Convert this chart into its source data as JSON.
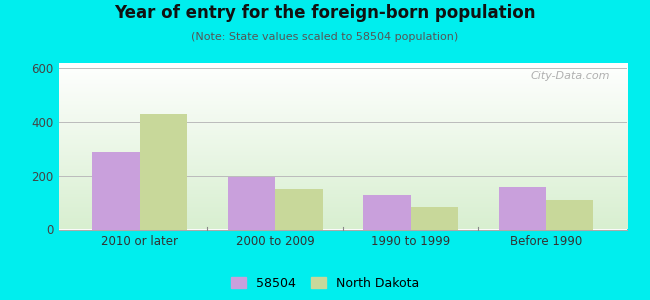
{
  "title": "Year of entry for the foreign-born population",
  "subtitle": "(Note: State values scaled to 58504 population)",
  "categories": [
    "2010 or later",
    "2000 to 2009",
    "1990 to 1999",
    "Before 1990"
  ],
  "values_58504": [
    290,
    197,
    127,
    158
  ],
  "values_nd": [
    430,
    152,
    83,
    108
  ],
  "color_58504": "#c9a0dc",
  "color_nd": "#c8d89a",
  "ylim": [
    0,
    620
  ],
  "yticks": [
    0,
    200,
    400,
    600
  ],
  "background_color": "#00eeee",
  "plot_bg_top_left": "#f0faf0",
  "plot_bg_bottom_right": "#d8efd0",
  "legend_labels": [
    "58504",
    "North Dakota"
  ],
  "watermark": "City-Data.com",
  "bar_width": 0.35,
  "figsize": [
    6.5,
    3.0
  ],
  "dpi": 100
}
